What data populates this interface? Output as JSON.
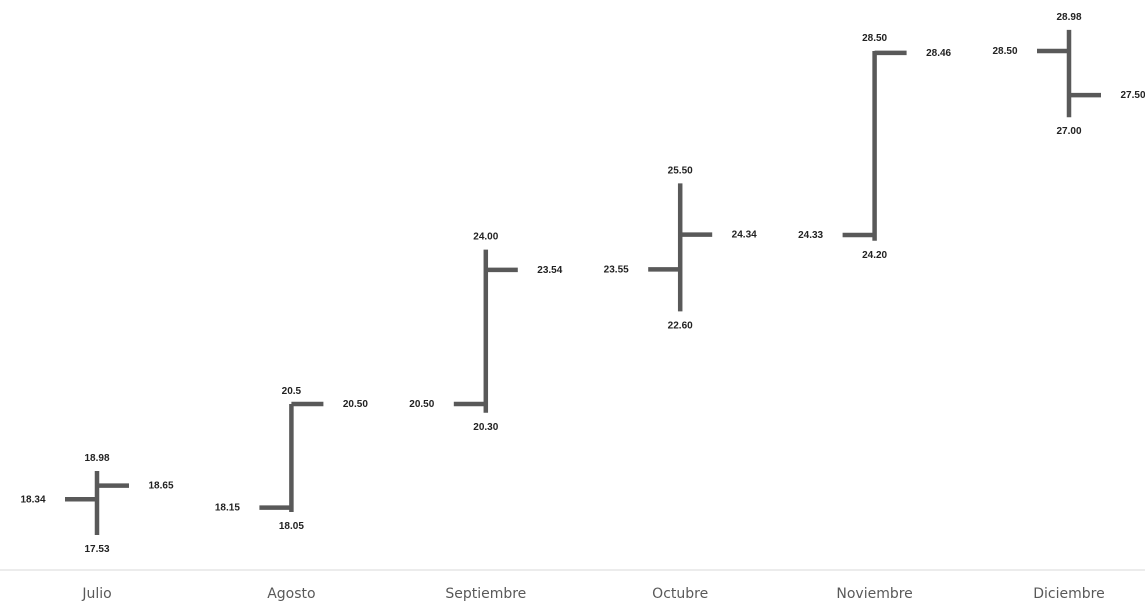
{
  "chart_data": {
    "type": "ohlc",
    "title": "",
    "xlabel": "",
    "ylabel": "",
    "ylim": [
      16.6,
      30.2
    ],
    "grid": false,
    "legend": "none",
    "colors": {
      "bars": "#595959",
      "labels": "#222222",
      "axis_text": "#595959",
      "axis_line": "#d9d9d9"
    },
    "categories": [
      "Julio",
      "Agosto",
      "Septiembre",
      "Octubre",
      "Noviembre",
      "Diciembre"
    ],
    "series": [
      {
        "category": "Julio",
        "open": 18.34,
        "high": 18.98,
        "low": 17.53,
        "close": 18.65,
        "labels": {
          "open": "18.34",
          "high": "18.98",
          "low": "17.53",
          "close": "18.65"
        }
      },
      {
        "category": "Agosto",
        "open": 18.15,
        "high": 20.5,
        "low": 18.05,
        "close": 20.5,
        "labels": {
          "open": "18.15",
          "high": "20.5",
          "low": "18.05",
          "close": "20.50"
        }
      },
      {
        "category": "Septiembre",
        "open": 20.5,
        "high": 24.0,
        "low": 20.3,
        "close": 23.54,
        "labels": {
          "open": "20.50",
          "high": "24.00",
          "low": "20.30",
          "close": "23.54"
        }
      },
      {
        "category": "Octubre",
        "open": 23.55,
        "high": 25.5,
        "low": 22.6,
        "close": 24.34,
        "labels": {
          "open": "23.55",
          "high": "25.50",
          "low": "22.60",
          "close": "24.34"
        }
      },
      {
        "category": "Noviembre",
        "open": 24.33,
        "high": 28.5,
        "low": 24.2,
        "close": 28.46,
        "labels": {
          "open": "24.33",
          "high": "28.50",
          "low": "24.20",
          "close": "28.46"
        }
      },
      {
        "category": "Diciembre",
        "open": 28.5,
        "high": 28.98,
        "low": 27.0,
        "close": 27.5,
        "labels": {
          "open": "28.50",
          "high": "28.98",
          "low": "27.00",
          "close": "27.50"
        }
      }
    ]
  }
}
